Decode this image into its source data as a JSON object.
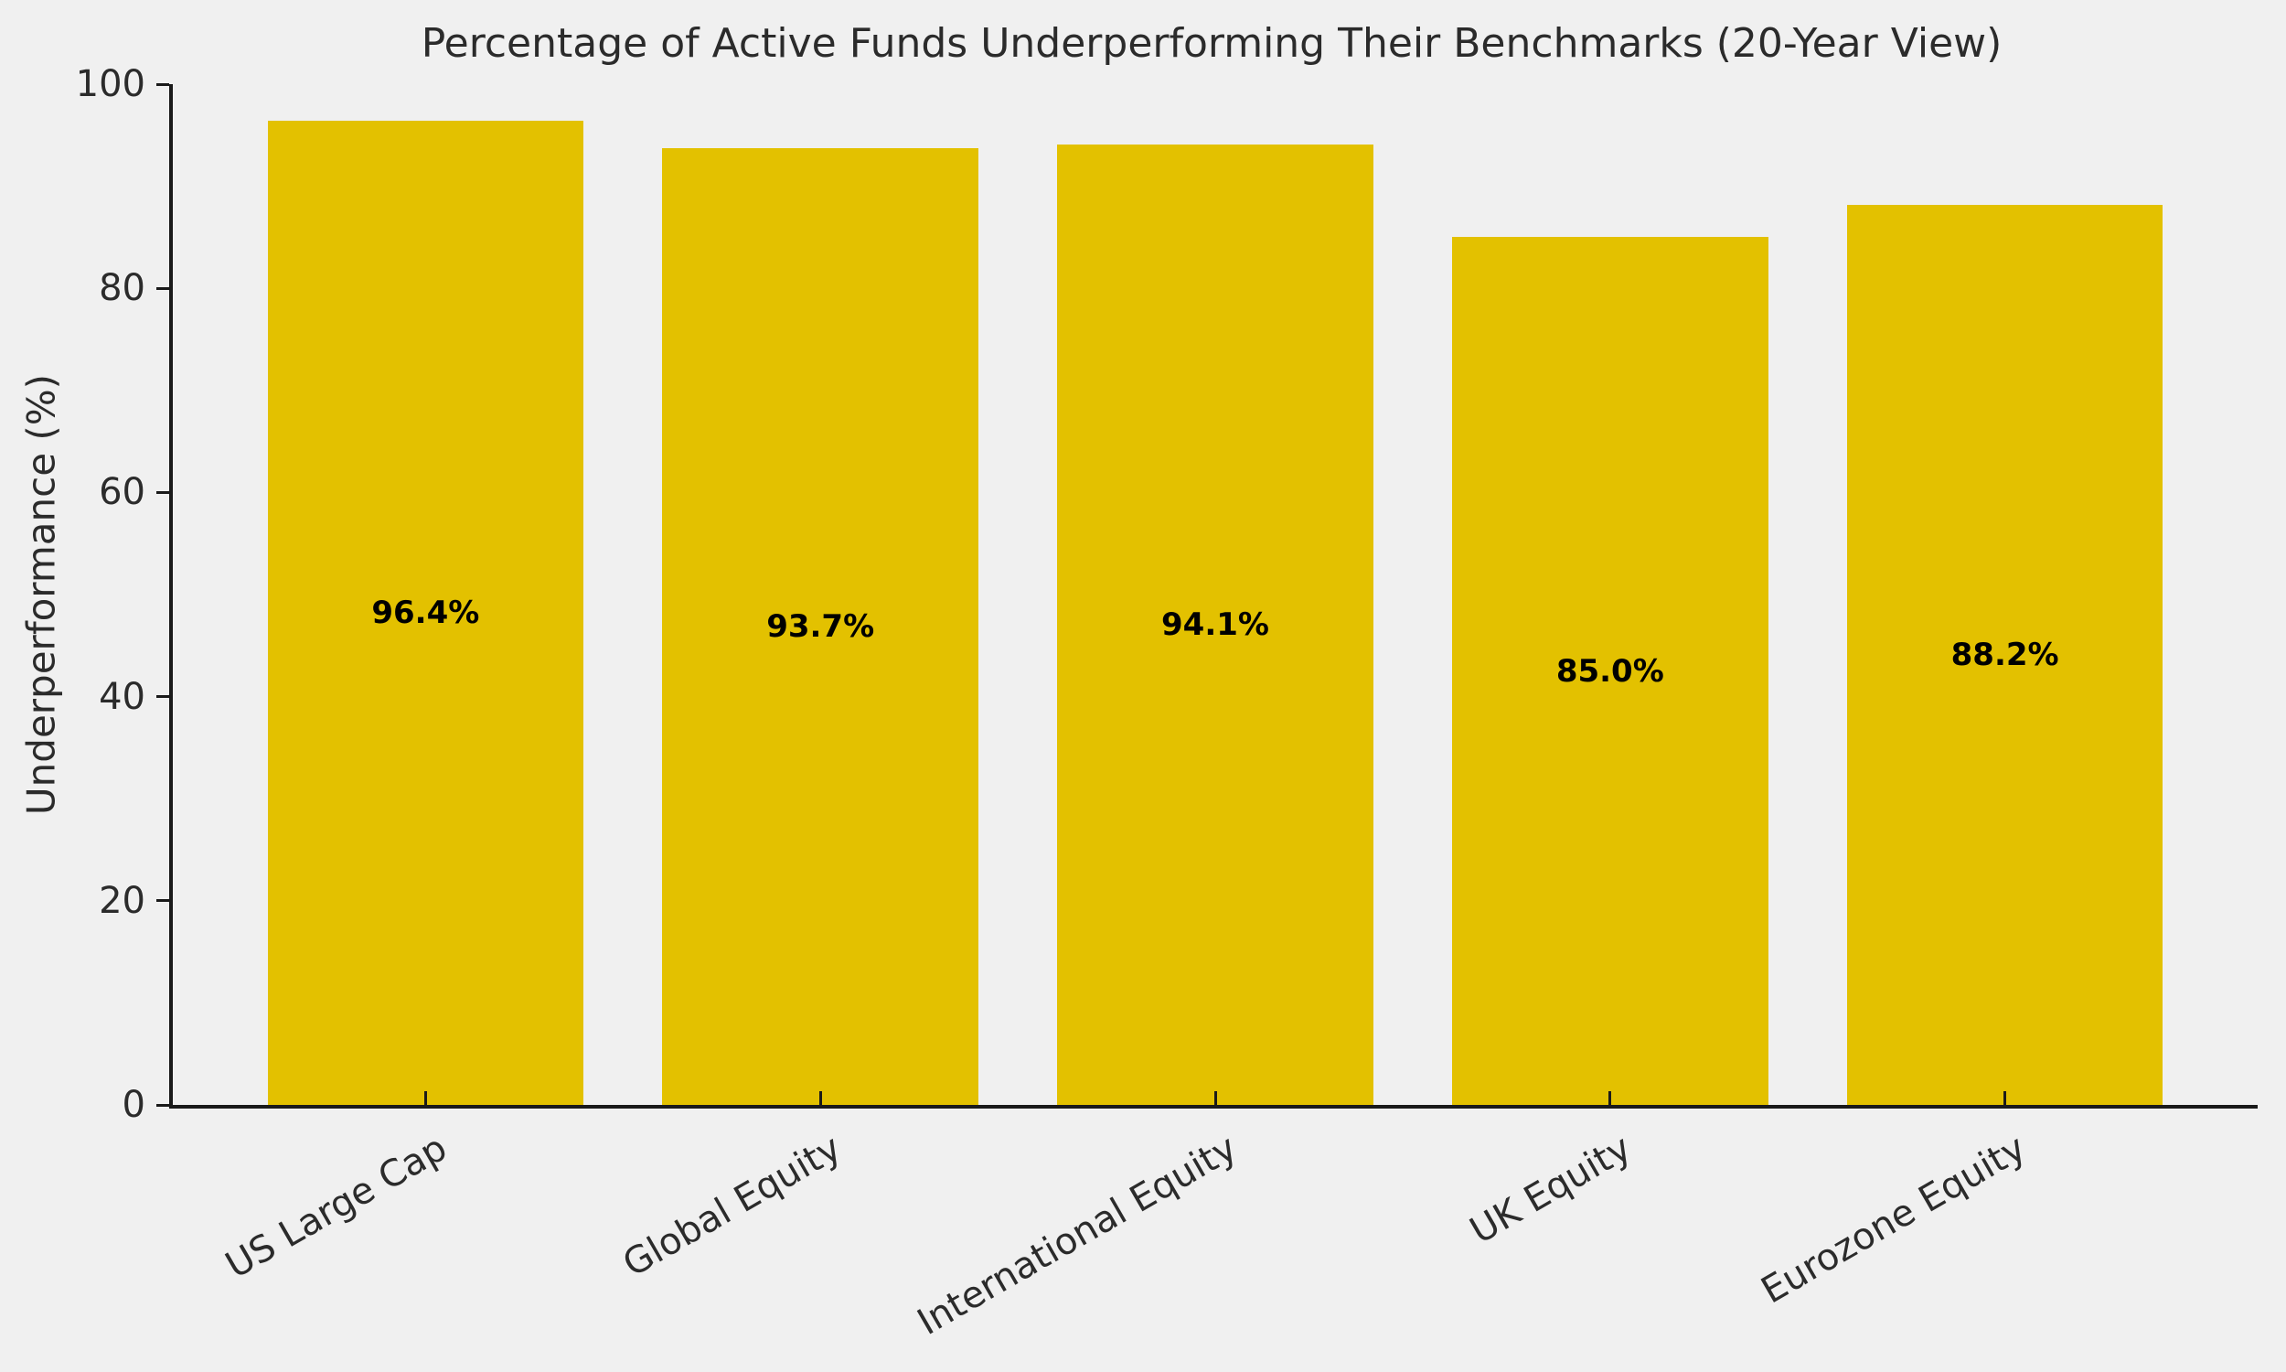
{
  "chart_data": {
    "type": "bar",
    "title": "Percentage of Active Funds Underperforming Their Benchmarks (20-Year View)",
    "xlabel": "",
    "ylabel": "Underperformance (%)",
    "categories": [
      "US Large Cap",
      "Global Equity",
      "International Equity",
      "UK Equity",
      "Eurozone Equity"
    ],
    "values": [
      96.4,
      93.7,
      94.1,
      85.0,
      88.2
    ],
    "bar_labels": [
      "96.4%",
      "93.7%",
      "94.1%",
      "85.0%",
      "88.2%"
    ],
    "yticks": [
      0,
      20,
      40,
      60,
      80,
      100
    ],
    "ylim": [
      0,
      100
    ],
    "grid": false,
    "legend": false,
    "x_tick_rotation_deg": 30,
    "bar_color": "#E3C100",
    "background_color": "#F0F0F0",
    "axis_color": "#1A1A1A",
    "text_color": "#2B2B2B"
  }
}
